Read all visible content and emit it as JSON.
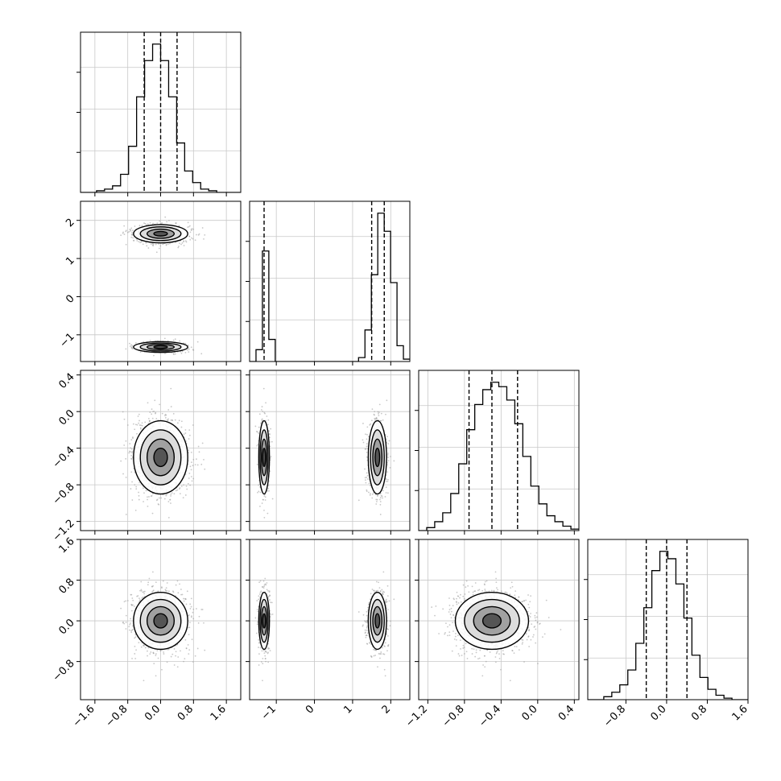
{
  "chart_data": {
    "type": "corner",
    "title": "",
    "grid": true,
    "parameters": [
      {
        "xlim": [
          -1.95,
          1.95
        ],
        "ticks": [
          "−1.6",
          "−0.8",
          "0.0",
          "0.8",
          "1.6"
        ],
        "tick_values": [
          -1.6,
          -0.8,
          0.0,
          0.8,
          1.6
        ],
        "quantiles": [
          -0.4,
          0.0,
          0.4
        ],
        "histogram": [
          0,
          0,
          1,
          2,
          4,
          11,
          28,
          58,
          80,
          90,
          80,
          58,
          30,
          13,
          6,
          2,
          1,
          0,
          0,
          0
        ]
      },
      {
        "xlim": [
          -1.7,
          2.5
        ],
        "ticks": [
          "−1",
          "0",
          "1",
          "2"
        ],
        "tick_values": [
          -1,
          0,
          1,
          2
        ],
        "quantiles": [
          -1.32,
          1.5,
          1.83
        ],
        "histogram": [
          0,
          15,
          140,
          28,
          0,
          0,
          0,
          0,
          0,
          0,
          0,
          0,
          0,
          0,
          0,
          0,
          0,
          5,
          40,
          110,
          188,
          165,
          100,
          20,
          3
        ]
      },
      {
        "xlim": [
          -1.3,
          0.45
        ],
        "ticks": [
          "−1.2",
          "−0.8",
          "−0.4",
          "0.0",
          "0.4"
        ],
        "tick_values": [
          -1.2,
          -0.8,
          -0.4,
          0.0,
          0.4
        ],
        "quantiles": [
          -0.75,
          -0.5,
          -0.22
        ],
        "histogram": [
          0,
          0.02,
          0.06,
          0.12,
          0.25,
          0.45,
          0.68,
          0.85,
          0.95,
          1.0,
          0.97,
          0.88,
          0.72,
          0.5,
          0.3,
          0.18,
          0.1,
          0.06,
          0.03,
          0.01
        ]
      },
      {
        "xlim": [
          -1.55,
          1.6
        ],
        "ticks": [
          "−0.8",
          "0.0",
          "0.8",
          "1.6"
        ],
        "tick_values": [
          -0.8,
          0.0,
          0.8,
          1.6
        ],
        "quantiles": [
          -0.4,
          0.0,
          0.4
        ],
        "histogram": [
          0,
          0,
          0.02,
          0.05,
          0.1,
          0.2,
          0.38,
          0.62,
          0.87,
          1.0,
          0.95,
          0.78,
          0.55,
          0.3,
          0.15,
          0.07,
          0.03,
          0.01,
          0,
          0
        ]
      }
    ],
    "row_tick_labels": {
      "1": [
        "2",
        "1",
        "0",
        "−1"
      ],
      "2": [
        "0.4",
        "0.0",
        "−0.4",
        "−0.8",
        "−1.2"
      ],
      "3": [
        "1.6",
        "0.8",
        "0.0",
        "−0.8"
      ]
    },
    "row_tick_values": {
      "1": [
        2,
        1,
        0,
        -1
      ],
      "2": [
        0.4,
        0.0,
        -0.4,
        -0.8,
        -1.2
      ],
      "3": [
        1.6,
        0.8,
        0.0,
        -0.8
      ]
    },
    "clusters": {
      "p0": [
        {
          "m": 0.0,
          "s": 0.33,
          "w": 1
        }
      ],
      "p1": [
        {
          "m": -1.32,
          "s": 0.07,
          "w": 0.35
        },
        {
          "m": 1.65,
          "s": 0.12,
          "w": 0.65
        }
      ],
      "p2": [
        {
          "m": -0.5,
          "s": 0.2,
          "w": 1
        }
      ],
      "p3": [
        {
          "m": 0.0,
          "s": 0.28,
          "w": 1
        }
      ]
    }
  }
}
